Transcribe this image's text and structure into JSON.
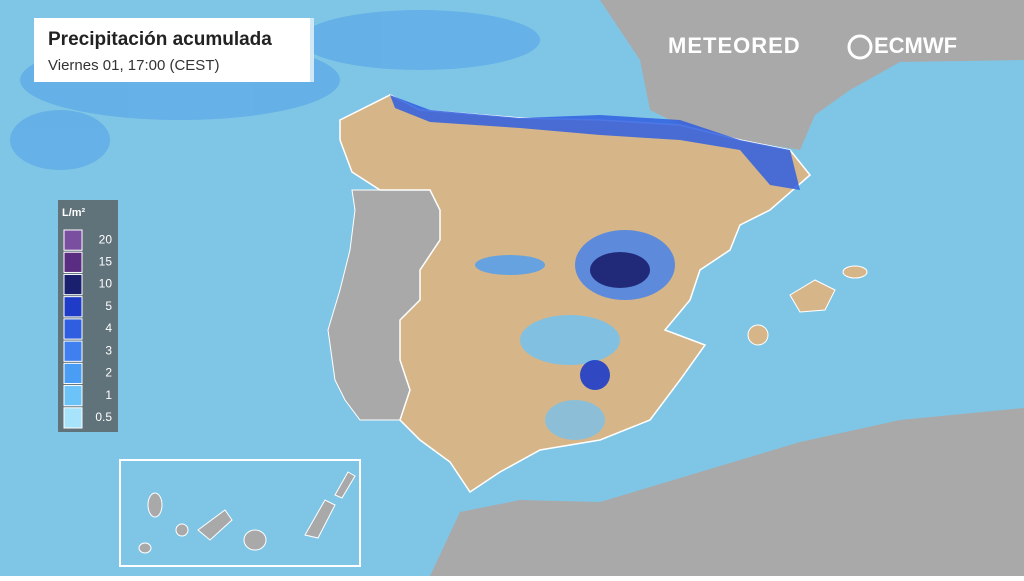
{
  "header": {
    "title": "Precipitación acumulada",
    "subtitle": "Viernes 01, 17:00 (CEST)"
  },
  "brands": [
    "METEORED",
    "ECMWF"
  ],
  "legend": {
    "unit": "L/m²",
    "items": [
      {
        "label": 20,
        "color": "#7a4fa0"
      },
      {
        "label": 15,
        "color": "#5a2d82"
      },
      {
        "label": 10,
        "color": "#1a1f6e"
      },
      {
        "label": 5,
        "color": "#1e3cc8"
      },
      {
        "label": 4,
        "color": "#2f5fe0"
      },
      {
        "label": 3,
        "color": "#3f7ff0"
      },
      {
        "label": 2,
        "color": "#4a9df5"
      },
      {
        "label": 1,
        "color": "#6cc3f8"
      },
      {
        "label": 0.5,
        "color": "#a7e3fb"
      }
    ]
  }
}
